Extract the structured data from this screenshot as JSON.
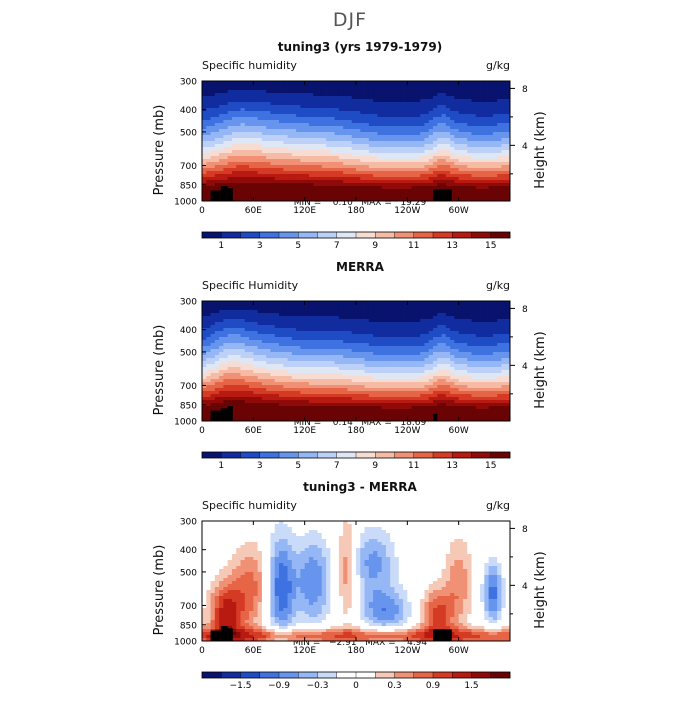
{
  "title": "DJF",
  "chart_data": [
    {
      "type": "heatmap",
      "title": "tuning3 (yrs 1979-1979)",
      "variable": "Specific humidity",
      "units": "g/kg",
      "ylabel": "Pressure (mb)",
      "ylabel_right": "Height (km)",
      "x_ticks": [
        "0",
        "60E",
        "120E",
        "180",
        "120W",
        "60W"
      ],
      "y_ticks": [
        "300",
        "400",
        "500",
        "700",
        "850",
        "1000"
      ],
      "height_ticks": [
        "8",
        "4"
      ],
      "min_max": "MIN =    0.10   MAX =   19.29",
      "colorbar_labels": [
        "1",
        "3",
        "5",
        "7",
        "9",
        "11",
        "13",
        "15"
      ],
      "colorbar_colors": [
        "#08136e",
        "#112c9e",
        "#1f4cc5",
        "#3e72e0",
        "#6795ee",
        "#95b7f5",
        "#bdd1f8",
        "#dfe7f5",
        "#f6dcd3",
        "#f5bba5",
        "#f09176",
        "#e76547",
        "#d53a25",
        "#b81a12",
        "#8f0a08",
        "#6a0404"
      ],
      "min": 0.1,
      "max": 19.29
    },
    {
      "type": "heatmap",
      "title": "MERRA",
      "variable": "Specific Humidity",
      "units": "g/kg",
      "ylabel": "Pressure (mb)",
      "ylabel_right": "Height (km)",
      "x_ticks": [
        "0",
        "60E",
        "120E",
        "180",
        "120W",
        "60W"
      ],
      "y_ticks": [
        "300",
        "400",
        "500",
        "700",
        "850",
        "1000"
      ],
      "height_ticks": [
        "8",
        "4"
      ],
      "min_max": "MIN =    0.14   MAX =   18.69",
      "colorbar_labels": [
        "1",
        "3",
        "5",
        "7",
        "9",
        "11",
        "13",
        "15"
      ],
      "colorbar_colors": [
        "#08136e",
        "#112c9e",
        "#1f4cc5",
        "#3e72e0",
        "#6795ee",
        "#95b7f5",
        "#bdd1f8",
        "#dfe7f5",
        "#f6dcd3",
        "#f5bba5",
        "#f09176",
        "#e76547",
        "#d53a25",
        "#b81a12",
        "#8f0a08",
        "#6a0404"
      ],
      "min": 0.14,
      "max": 18.69
    },
    {
      "type": "heatmap",
      "title": "tuning3 - MERRA",
      "variable": "Specific humidity",
      "units": "g/kg",
      "ylabel": "Pressure (mb)",
      "ylabel_right": "Height (km)",
      "x_ticks": [
        "0",
        "60E",
        "120E",
        "180",
        "120W",
        "60W"
      ],
      "y_ticks": [
        "300",
        "400",
        "500",
        "700",
        "850",
        "1000"
      ],
      "height_ticks": [
        "8",
        "4"
      ],
      "min_max": "MIN =   −2.91   MAX =    4.94",
      "colorbar_labels": [
        "−1.5",
        "−0.9",
        "−0.3",
        "0",
        "0.3",
        "0.9",
        "1.5"
      ],
      "colorbar_colors": [
        "#08136e",
        "#112c9e",
        "#1f4cc5",
        "#3e72e0",
        "#6795ee",
        "#95b7f5",
        "#c9dbf9",
        "#ffffff",
        "#ffffff",
        "#f6c8b6",
        "#f09176",
        "#e76547",
        "#d53a25",
        "#b81a12",
        "#8f0a08",
        "#6a0404"
      ],
      "min": -2.91,
      "max": 4.94
    }
  ]
}
